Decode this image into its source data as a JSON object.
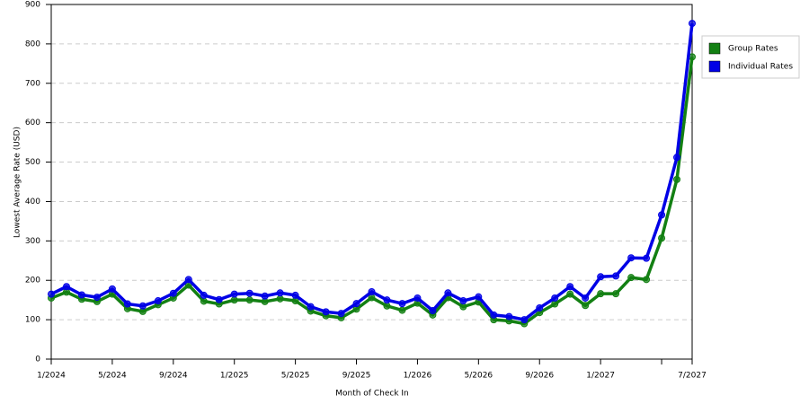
{
  "chart_data": {
    "type": "line",
    "x_label": "Month of Check In",
    "y_label": "Lowest Average Rate (USD)",
    "categories": [
      "1/2024",
      null,
      null,
      null,
      "5/2024",
      null,
      null,
      null,
      "9/2024",
      null,
      null,
      null,
      "1/2025",
      null,
      null,
      null,
      "5/2025",
      null,
      null,
      null,
      "9/2025",
      null,
      null,
      null,
      "1/2026",
      null,
      null,
      null,
      "5/2026",
      null,
      null,
      null,
      "9/2026",
      null,
      null,
      null,
      "1/2027",
      null,
      null,
      null,
      null,
      null,
      "7/2027"
    ],
    "series": [
      {
        "name": "Group Rates",
        "color": "#138013",
        "values": [
          155,
          170,
          152,
          146,
          165,
          128,
          121,
          138,
          155,
          188,
          147,
          140,
          150,
          150,
          146,
          153,
          148,
          122,
          110,
          105,
          127,
          156,
          135,
          124,
          142,
          112,
          156,
          133,
          145,
          100,
          97,
          90,
          118,
          140,
          165,
          136,
          166,
          166,
          207,
          202,
          307,
          456,
          767
        ]
      },
      {
        "name": "Individual Rates",
        "color": "#0000e6",
        "values": [
          165,
          184,
          163,
          157,
          178,
          140,
          135,
          148,
          167,
          202,
          162,
          151,
          165,
          167,
          160,
          168,
          162,
          133,
          120,
          116,
          141,
          171,
          150,
          141,
          155,
          123,
          168,
          148,
          158,
          112,
          108,
          100,
          130,
          155,
          184,
          155,
          209,
          211,
          257,
          256,
          366,
          512,
          852
        ]
      }
    ],
    "ylim": [
      0,
      900
    ],
    "yticks": [
      0,
      100,
      200,
      300,
      400,
      500,
      600,
      700,
      800,
      900
    ],
    "grid": true,
    "legend": "right"
  }
}
